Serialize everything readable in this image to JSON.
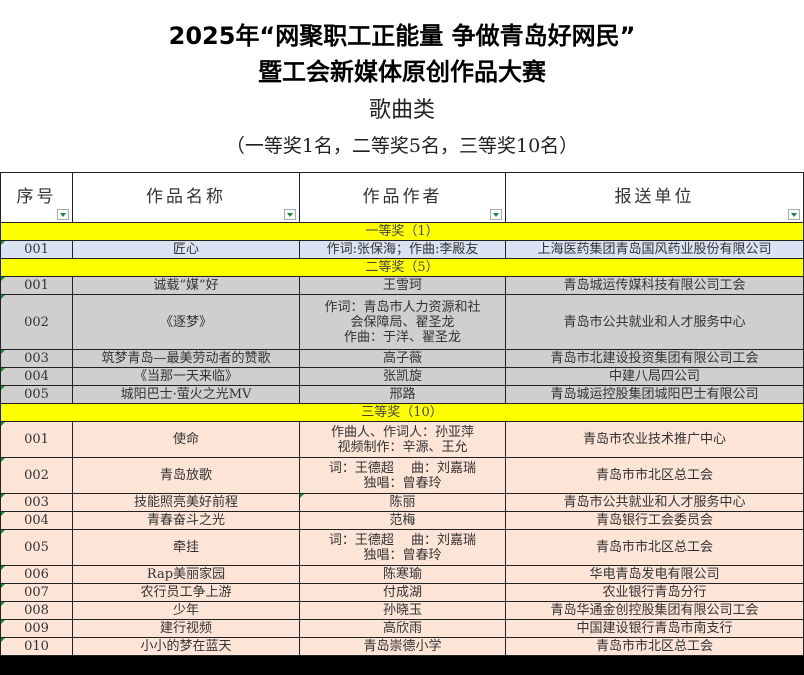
{
  "title": {
    "line1": "2025年“网聚职工正能量 争做青岛好网民”",
    "line2": "暨工会新媒体原创作品大赛",
    "category": "歌曲类",
    "quota": "（一等奖1名，二等奖5名，三等奖10名）"
  },
  "headers": [
    "序号",
    "作品名称",
    "作品作者",
    "报送单位"
  ],
  "colors": {
    "section": "#ffff00",
    "first": "#dae3f3",
    "second": "#d0cece",
    "third": "#fce4d6"
  },
  "sections": [
    {
      "label": "一等奖（1）",
      "rows": [
        {
          "no": "001",
          "name": "匠心",
          "author": [
            "作词:张保海；作曲:李殿友"
          ],
          "unit": "上海医药集团青岛国风药业股份有限公司"
        }
      ]
    },
    {
      "label": "二等奖（5）",
      "rows": [
        {
          "no": "001",
          "name": "诚载“媒”好",
          "author": [
            "王雪珂"
          ],
          "unit": "青岛城运传媒科技有限公司工会"
        },
        {
          "no": "002",
          "name": "《逐梦》",
          "author": [
            "作词：青岛市人力资源和社",
            "会保障局、翟圣龙",
            "作曲：于洋、翟圣龙"
          ],
          "unit": "青岛市公共就业和人才服务中心"
        },
        {
          "no": "003",
          "name": "筑梦青岛—最美劳动者的赞歌",
          "author": [
            "高子薇"
          ],
          "unit": "青岛市北建设投资集团有限公司工会"
        },
        {
          "no": "004",
          "name": "《当那一天来临》",
          "author": [
            "张凯旋"
          ],
          "unit": "中建八局四公司"
        },
        {
          "no": "005",
          "name": "城阳巴士·萤火之光MV",
          "author": [
            "邢路"
          ],
          "unit": "青岛城运控股集团城阳巴士有限公司"
        }
      ]
    },
    {
      "label": "三等奖（10）",
      "rows": [
        {
          "no": "001",
          "name": "使命",
          "author": [
            "作曲人、作词人：孙亚萍",
            "视频制作：辛源、王允"
          ],
          "unit": "青岛市农业技术推广中心"
        },
        {
          "no": "002",
          "name": "青岛放歌",
          "author": [
            "词：王德超　 曲：刘嘉瑞",
            "独唱：曾春玲"
          ],
          "unit": "青岛市市北区总工会"
        },
        {
          "no": "003",
          "name": "技能照亮美好前程",
          "author": [
            "陈丽"
          ],
          "unit": "青岛市公共就业和人才服务中心"
        },
        {
          "no": "004",
          "name": "青春奋斗之光",
          "author": [
            "范梅"
          ],
          "unit": "青岛银行工会委员会"
        },
        {
          "no": "005",
          "name": "牵挂",
          "author": [
            "词：王德超　 曲：刘嘉瑞",
            "独唱：曾春玲"
          ],
          "unit": "青岛市市北区总工会"
        },
        {
          "no": "006",
          "name": "Rap美丽家园",
          "author": [
            "陈寒瑜"
          ],
          "unit": "华电青岛发电有限公司"
        },
        {
          "no": "007",
          "name": "农行员工争上游",
          "author": [
            "付成湖"
          ],
          "unit": "农业银行青岛分行"
        },
        {
          "no": "008",
          "name": "少年",
          "author": [
            "孙晓玉"
          ],
          "unit": "青岛华通金创控股集团有限公司工会"
        },
        {
          "no": "009",
          "name": "建行视频",
          "author": [
            "高欣雨"
          ],
          "unit": "中国建设银行青岛市南支行"
        },
        {
          "no": "010",
          "name": "小小的梦在蓝天",
          "author": [
            "青岛崇德小学"
          ],
          "unit": "青岛市市北区总工会"
        }
      ]
    }
  ]
}
